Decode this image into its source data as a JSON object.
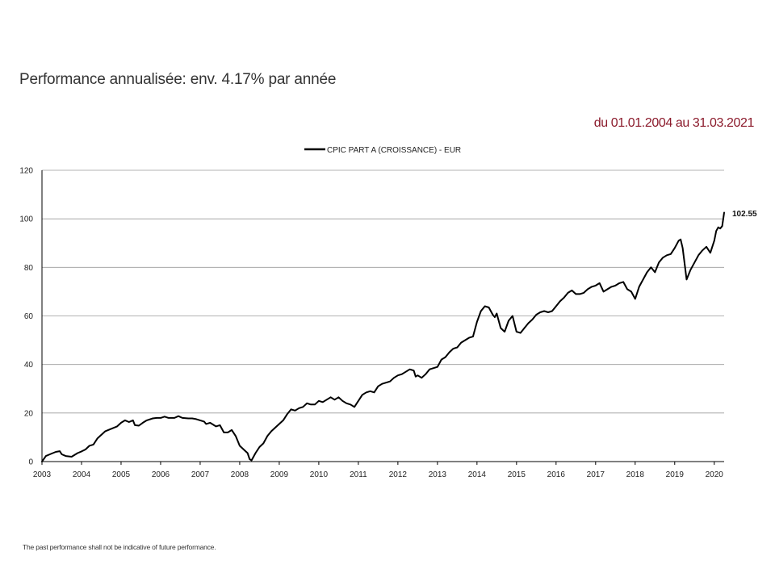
{
  "header": {
    "title": "Performance annualisée: env. 4.17% par année",
    "period": "du 01.01.2004 au 31.03.2021"
  },
  "footer": {
    "disclaimer": "The past performance shall not be indicative of future performance."
  },
  "colors": {
    "period_text": "#8b1a2b",
    "series_line": "#000000",
    "grid": "#9a9a9a"
  },
  "chart_data": {
    "type": "line",
    "title": "",
    "xlabel": "",
    "ylabel": "",
    "ylim": [
      0,
      120
    ],
    "xlim": [
      2003,
      2020.25
    ],
    "yticks": [
      "0",
      "20",
      "40",
      "60",
      "80",
      "100",
      "120"
    ],
    "xticks": [
      "2003",
      "2004",
      "2005",
      "2006",
      "2007",
      "2008",
      "2009",
      "2010",
      "2011",
      "2012",
      "2013",
      "2014",
      "2015",
      "2016",
      "2017",
      "2018",
      "2019",
      "2020"
    ],
    "grid": true,
    "legend": {
      "position": "top-center"
    },
    "end_label": "102.55",
    "series": [
      {
        "name": "CPIC PART A (CROISSANCE) - EUR",
        "x": [
          2003.0,
          2003.1,
          2003.2,
          2003.35,
          2003.45,
          2003.5,
          2003.6,
          2003.75,
          2003.9,
          2004.0,
          2004.1,
          2004.2,
          2004.3,
          2004.4,
          2004.5,
          2004.6,
          2004.75,
          2004.9,
          2005.0,
          2005.1,
          2005.2,
          2005.3,
          2005.35,
          2005.45,
          2005.55,
          2005.65,
          2005.8,
          2005.9,
          2006.0,
          2006.1,
          2006.2,
          2006.35,
          2006.45,
          2006.55,
          2006.7,
          2006.8,
          2006.9,
          2007.0,
          2007.1,
          2007.15,
          2007.25,
          2007.4,
          2007.5,
          2007.6,
          2007.7,
          2007.8,
          2007.9,
          2008.0,
          2008.1,
          2008.2,
          2008.25,
          2008.3,
          2008.4,
          2008.5,
          2008.6,
          2008.7,
          2008.8,
          2008.9,
          2009.0,
          2009.1,
          2009.2,
          2009.3,
          2009.4,
          2009.5,
          2009.6,
          2009.7,
          2009.8,
          2009.9,
          2010.0,
          2010.1,
          2010.2,
          2010.3,
          2010.4,
          2010.5,
          2010.6,
          2010.7,
          2010.8,
          2010.9,
          2011.0,
          2011.1,
          2011.2,
          2011.3,
          2011.4,
          2011.5,
          2011.6,
          2011.7,
          2011.8,
          2011.9,
          2012.0,
          2012.1,
          2012.2,
          2012.3,
          2012.4,
          2012.45,
          2012.5,
          2012.6,
          2012.7,
          2012.8,
          2012.9,
          2013.0,
          2013.1,
          2013.2,
          2013.3,
          2013.4,
          2013.5,
          2013.6,
          2013.7,
          2013.8,
          2013.9,
          2014.0,
          2014.1,
          2014.2,
          2014.3,
          2014.4,
          2014.45,
          2014.5,
          2014.6,
          2014.7,
          2014.8,
          2014.9,
          2015.0,
          2015.1,
          2015.2,
          2015.3,
          2015.4,
          2015.5,
          2015.6,
          2015.7,
          2015.8,
          2015.9,
          2016.0,
          2016.1,
          2016.2,
          2016.3,
          2016.4,
          2016.5,
          2016.6,
          2016.7,
          2016.8,
          2016.9,
          2017.0,
          2017.1,
          2017.2,
          2017.3,
          2017.4,
          2017.5,
          2017.6,
          2017.7,
          2017.8,
          2017.9,
          2018.0,
          2018.1,
          2018.2,
          2018.3,
          2018.4,
          2018.5,
          2018.6,
          2018.7,
          2018.8,
          2018.9,
          2019.0,
          2019.1,
          2019.15,
          2019.2,
          2019.3,
          2019.4,
          2019.5,
          2019.6,
          2019.7,
          2019.8,
          2019.9,
          2020.0,
          2020.05,
          2020.1,
          2020.15,
          2020.2,
          2020.25
        ],
        "values": [
          0,
          2.3,
          3,
          4,
          4.3,
          3.0,
          2.3,
          2.0,
          3.5,
          4.2,
          5.0,
          6.5,
          7.0,
          9.5,
          11.0,
          12.5,
          13.5,
          14.5,
          16.0,
          17.0,
          16.3,
          17.0,
          15.0,
          14.8,
          16.0,
          17.0,
          17.8,
          18.0,
          18.0,
          18.5,
          18.0,
          18.0,
          18.7,
          18.0,
          17.8,
          17.8,
          17.5,
          17.0,
          16.5,
          15.5,
          16.0,
          14.5,
          15.0,
          12.0,
          12.0,
          13.0,
          10.5,
          6.5,
          5.0,
          3.5,
          1.0,
          0.5,
          3.5,
          6.0,
          7.5,
          10.5,
          12.5,
          14.0,
          15.5,
          17.0,
          19.5,
          21.5,
          21.0,
          22.0,
          22.5,
          24.0,
          23.5,
          23.5,
          25.0,
          24.5,
          25.5,
          26.5,
          25.5,
          26.5,
          25.0,
          24.0,
          23.5,
          22.5,
          25.0,
          27.5,
          28.5,
          29.0,
          28.5,
          31.0,
          32.0,
          32.5,
          33.0,
          34.5,
          35.5,
          36.0,
          37.0,
          38.0,
          37.5,
          35.0,
          35.5,
          34.5,
          36.0,
          38.0,
          38.5,
          39.0,
          42.0,
          43.0,
          45.0,
          46.5,
          47.0,
          49.0,
          50.0,
          51.0,
          51.5,
          57.5,
          62.0,
          64.0,
          63.5,
          60.5,
          59.5,
          61.0,
          55.0,
          53.5,
          58.0,
          60.0,
          53.5,
          53.0,
          55.0,
          57.0,
          58.5,
          60.5,
          61.5,
          62.0,
          61.5,
          62.0,
          64.0,
          66.0,
          67.5,
          69.5,
          70.5,
          69.0,
          69.0,
          69.5,
          71.0,
          72.0,
          72.5,
          73.5,
          70.0,
          71.0,
          72.0,
          72.5,
          73.5,
          74.0,
          71.0,
          70.0,
          67.0,
          72.0,
          75.0,
          78.0,
          80.0,
          78.0,
          82.0,
          84.0,
          85.0,
          85.5,
          88.0,
          91.0,
          91.5,
          88.0,
          75.0,
          79.0,
          82.0,
          85.0,
          87.0,
          88.5,
          86.0,
          91.0,
          95.0,
          96.5,
          96.0,
          97.0,
          102.55
        ]
      }
    ]
  }
}
